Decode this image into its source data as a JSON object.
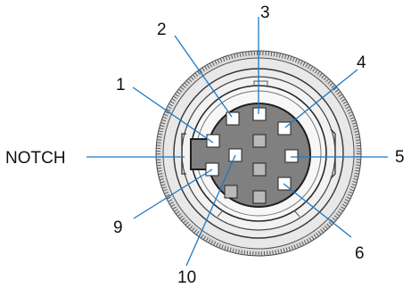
{
  "diagram": {
    "pin_labels": {
      "p1": "1",
      "p2": "2",
      "p3": "3",
      "p4": "4",
      "p5": "5",
      "p6": "6",
      "p9": "9",
      "p10": "10"
    },
    "notch_label": "NOTCH"
  },
  "colors": {
    "leader_line": "#1b78c6",
    "contact_face": "#808080",
    "pin_white": "#ffffff",
    "pin_gray": "#b9b9b9",
    "outline": "#2a2a2a"
  }
}
